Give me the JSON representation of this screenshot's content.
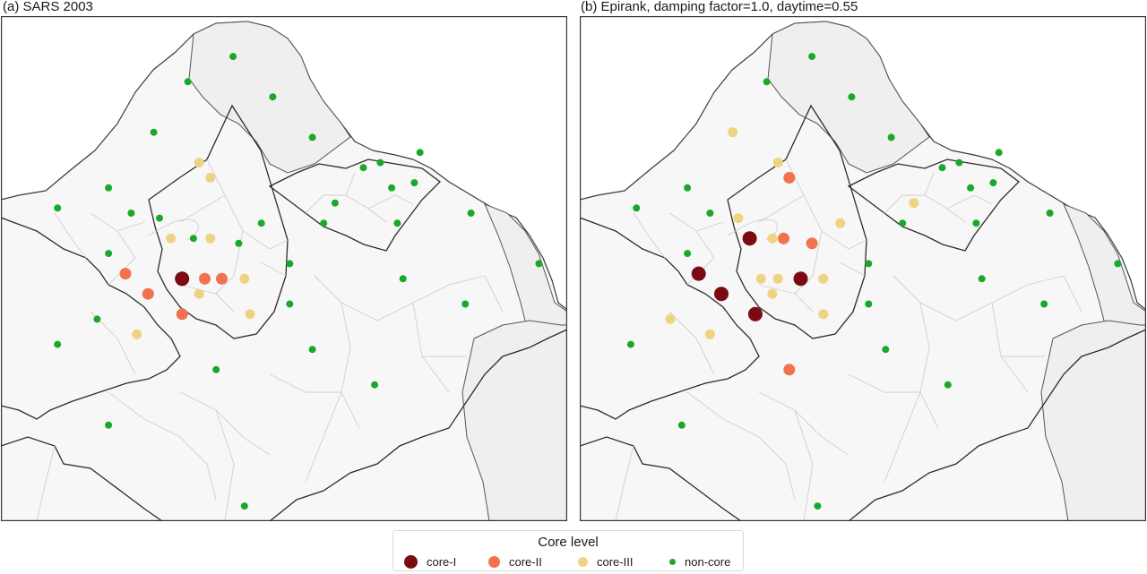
{
  "colors": {
    "core_I": "#7b0a12",
    "core_II": "#f2714e",
    "core_III": "#eed482",
    "non_core": "#1aa82c"
  },
  "panels": [
    {
      "title": "(a) SARS 2003",
      "points": [
        {
          "lon": 0.41,
          "lat": 0.92,
          "level": "non_core"
        },
        {
          "lon": 0.33,
          "lat": 0.87,
          "level": "non_core"
        },
        {
          "lon": 0.48,
          "lat": 0.84,
          "level": "non_core"
        },
        {
          "lon": 0.27,
          "lat": 0.77,
          "level": "non_core"
        },
        {
          "lon": 0.55,
          "lat": 0.76,
          "level": "non_core"
        },
        {
          "lon": 0.35,
          "lat": 0.71,
          "level": "core_III"
        },
        {
          "lon": 0.37,
          "lat": 0.68,
          "level": "core_III"
        },
        {
          "lon": 0.74,
          "lat": 0.73,
          "level": "non_core"
        },
        {
          "lon": 0.64,
          "lat": 0.7,
          "level": "non_core"
        },
        {
          "lon": 0.67,
          "lat": 0.71,
          "level": "non_core"
        },
        {
          "lon": 0.19,
          "lat": 0.66,
          "level": "non_core"
        },
        {
          "lon": 0.69,
          "lat": 0.66,
          "level": "non_core"
        },
        {
          "lon": 0.73,
          "lat": 0.67,
          "level": "non_core"
        },
        {
          "lon": 0.59,
          "lat": 0.63,
          "level": "non_core"
        },
        {
          "lon": 0.1,
          "lat": 0.62,
          "level": "non_core"
        },
        {
          "lon": 0.23,
          "lat": 0.61,
          "level": "non_core"
        },
        {
          "lon": 0.28,
          "lat": 0.6,
          "level": "non_core"
        },
        {
          "lon": 0.46,
          "lat": 0.59,
          "level": "non_core"
        },
        {
          "lon": 0.57,
          "lat": 0.59,
          "level": "non_core"
        },
        {
          "lon": 0.7,
          "lat": 0.59,
          "level": "non_core"
        },
        {
          "lon": 0.83,
          "lat": 0.61,
          "level": "non_core"
        },
        {
          "lon": 0.3,
          "lat": 0.56,
          "level": "core_III"
        },
        {
          "lon": 0.34,
          "lat": 0.56,
          "level": "non_core"
        },
        {
          "lon": 0.37,
          "lat": 0.56,
          "level": "core_III"
        },
        {
          "lon": 0.42,
          "lat": 0.55,
          "level": "non_core"
        },
        {
          "lon": 0.19,
          "lat": 0.53,
          "level": "non_core"
        },
        {
          "lon": 0.51,
          "lat": 0.51,
          "level": "non_core"
        },
        {
          "lon": 0.95,
          "lat": 0.51,
          "level": "non_core"
        },
        {
          "lon": 0.22,
          "lat": 0.49,
          "level": "core_II"
        },
        {
          "lon": 0.32,
          "lat": 0.48,
          "level": "core_I"
        },
        {
          "lon": 0.36,
          "lat": 0.48,
          "level": "core_II"
        },
        {
          "lon": 0.39,
          "lat": 0.48,
          "level": "core_II"
        },
        {
          "lon": 0.43,
          "lat": 0.48,
          "level": "core_III"
        },
        {
          "lon": 0.71,
          "lat": 0.48,
          "level": "non_core"
        },
        {
          "lon": 0.26,
          "lat": 0.45,
          "level": "core_II"
        },
        {
          "lon": 0.35,
          "lat": 0.45,
          "level": "core_III"
        },
        {
          "lon": 0.51,
          "lat": 0.43,
          "level": "non_core"
        },
        {
          "lon": 0.82,
          "lat": 0.43,
          "level": "non_core"
        },
        {
          "lon": 0.32,
          "lat": 0.41,
          "level": "core_II"
        },
        {
          "lon": 0.44,
          "lat": 0.41,
          "level": "core_III"
        },
        {
          "lon": 0.17,
          "lat": 0.4,
          "level": "non_core"
        },
        {
          "lon": 0.24,
          "lat": 0.37,
          "level": "core_III"
        },
        {
          "lon": 0.1,
          "lat": 0.35,
          "level": "non_core"
        },
        {
          "lon": 0.55,
          "lat": 0.34,
          "level": "non_core"
        },
        {
          "lon": 0.38,
          "lat": 0.3,
          "level": "non_core"
        },
        {
          "lon": 0.66,
          "lat": 0.27,
          "level": "non_core"
        },
        {
          "lon": 0.19,
          "lat": 0.19,
          "level": "non_core"
        },
        {
          "lon": 0.43,
          "lat": 0.03,
          "level": "non_core"
        }
      ]
    },
    {
      "title": "(b) Epirank, damping factor=1.0, daytime=0.55",
      "points": [
        {
          "lon": 0.41,
          "lat": 0.92,
          "level": "non_core"
        },
        {
          "lon": 0.33,
          "lat": 0.87,
          "level": "non_core"
        },
        {
          "lon": 0.48,
          "lat": 0.84,
          "level": "non_core"
        },
        {
          "lon": 0.27,
          "lat": 0.77,
          "level": "core_III"
        },
        {
          "lon": 0.55,
          "lat": 0.76,
          "level": "non_core"
        },
        {
          "lon": 0.35,
          "lat": 0.71,
          "level": "core_III"
        },
        {
          "lon": 0.37,
          "lat": 0.68,
          "level": "core_II"
        },
        {
          "lon": 0.74,
          "lat": 0.73,
          "level": "non_core"
        },
        {
          "lon": 0.64,
          "lat": 0.7,
          "level": "non_core"
        },
        {
          "lon": 0.67,
          "lat": 0.71,
          "level": "non_core"
        },
        {
          "lon": 0.19,
          "lat": 0.66,
          "level": "non_core"
        },
        {
          "lon": 0.69,
          "lat": 0.66,
          "level": "non_core"
        },
        {
          "lon": 0.73,
          "lat": 0.67,
          "level": "non_core"
        },
        {
          "lon": 0.59,
          "lat": 0.63,
          "level": "core_III"
        },
        {
          "lon": 0.1,
          "lat": 0.62,
          "level": "non_core"
        },
        {
          "lon": 0.23,
          "lat": 0.61,
          "level": "non_core"
        },
        {
          "lon": 0.28,
          "lat": 0.6,
          "level": "core_III"
        },
        {
          "lon": 0.46,
          "lat": 0.59,
          "level": "core_III"
        },
        {
          "lon": 0.57,
          "lat": 0.59,
          "level": "non_core"
        },
        {
          "lon": 0.7,
          "lat": 0.59,
          "level": "non_core"
        },
        {
          "lon": 0.83,
          "lat": 0.61,
          "level": "non_core"
        },
        {
          "lon": 0.3,
          "lat": 0.56,
          "level": "core_I"
        },
        {
          "lon": 0.34,
          "lat": 0.56,
          "level": "core_III"
        },
        {
          "lon": 0.36,
          "lat": 0.56,
          "level": "core_II"
        },
        {
          "lon": 0.41,
          "lat": 0.55,
          "level": "core_II"
        },
        {
          "lon": 0.19,
          "lat": 0.53,
          "level": "non_core"
        },
        {
          "lon": 0.51,
          "lat": 0.51,
          "level": "non_core"
        },
        {
          "lon": 0.95,
          "lat": 0.51,
          "level": "non_core"
        },
        {
          "lon": 0.21,
          "lat": 0.49,
          "level": "core_I"
        },
        {
          "lon": 0.32,
          "lat": 0.48,
          "level": "core_III"
        },
        {
          "lon": 0.35,
          "lat": 0.48,
          "level": "core_III"
        },
        {
          "lon": 0.39,
          "lat": 0.48,
          "level": "core_I"
        },
        {
          "lon": 0.43,
          "lat": 0.48,
          "level": "core_III"
        },
        {
          "lon": 0.71,
          "lat": 0.48,
          "level": "non_core"
        },
        {
          "lon": 0.25,
          "lat": 0.45,
          "level": "core_I"
        },
        {
          "lon": 0.34,
          "lat": 0.45,
          "level": "core_III"
        },
        {
          "lon": 0.51,
          "lat": 0.43,
          "level": "non_core"
        },
        {
          "lon": 0.82,
          "lat": 0.43,
          "level": "non_core"
        },
        {
          "lon": 0.31,
          "lat": 0.41,
          "level": "core_I"
        },
        {
          "lon": 0.43,
          "lat": 0.41,
          "level": "core_III"
        },
        {
          "lon": 0.16,
          "lat": 0.4,
          "level": "core_III"
        },
        {
          "lon": 0.23,
          "lat": 0.37,
          "level": "core_III"
        },
        {
          "lon": 0.09,
          "lat": 0.35,
          "level": "non_core"
        },
        {
          "lon": 0.54,
          "lat": 0.34,
          "level": "non_core"
        },
        {
          "lon": 0.37,
          "lat": 0.3,
          "level": "core_II"
        },
        {
          "lon": 0.65,
          "lat": 0.27,
          "level": "non_core"
        },
        {
          "lon": 0.18,
          "lat": 0.19,
          "level": "non_core"
        },
        {
          "lon": 0.42,
          "lat": 0.03,
          "level": "non_core"
        }
      ]
    }
  ],
  "legend": {
    "title": "Core level",
    "items": [
      {
        "key": "core_I",
        "label": "core-I"
      },
      {
        "key": "core_II",
        "label": "core-II"
      },
      {
        "key": "core_III",
        "label": "core-III"
      },
      {
        "key": "non_core",
        "label": "non-core"
      }
    ]
  }
}
